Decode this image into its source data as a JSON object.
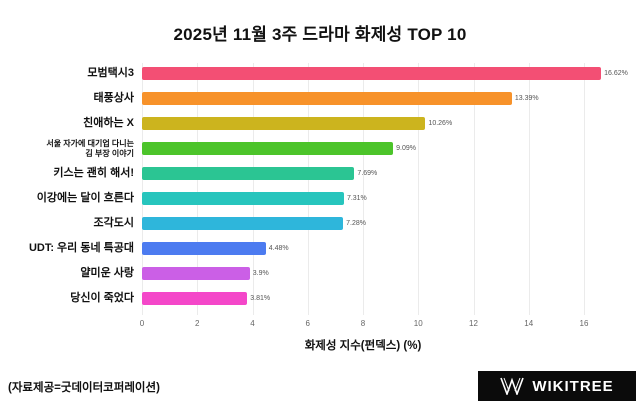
{
  "title": "2025년 11월 3주 드라마 화제성 TOP 10",
  "chart_data": {
    "type": "bar",
    "orientation": "horizontal",
    "title": "2025년 11월 3주 드라마 화제성 TOP 10",
    "categories": [
      "모범택시3",
      "태풍상사",
      "친애하는 X",
      "서울 자가에 대기업 다니는\n김 부장 이야기",
      "키스는 괜히 해서!",
      "이강에는 달이 흐른다",
      "조각도시",
      "UDT: 우리 동네 특공대",
      "얄미운 사랑",
      "당신이 죽었다"
    ],
    "values": [
      16.62,
      13.39,
      10.26,
      9.09,
      7.69,
      7.31,
      7.28,
      4.48,
      3.9,
      3.81
    ],
    "value_labels": [
      "16.62%",
      "13.39%",
      "10.26%",
      "9.09%",
      "7.69%",
      "7.31%",
      "7.28%",
      "4.48%",
      "3.9%",
      "3.81%"
    ],
    "bar_colors": [
      "#f34f74",
      "#f7922a",
      "#ccb41e",
      "#4cc42a",
      "#2bc593",
      "#27c5bd",
      "#2eb6db",
      "#4c7bf0",
      "#cb5fe6",
      "#f447c9"
    ],
    "xlabel": "화제성 지수(펀덱스) (%)",
    "xlim": [
      0,
      16
    ],
    "xticks": [
      0,
      2,
      4,
      6,
      8,
      10,
      12,
      14,
      16
    ],
    "grid": true,
    "legend": "none"
  },
  "footer": {
    "source": "(자료제공=굿데이터코퍼레이션)",
    "logo_text": "WIKITREE"
  }
}
